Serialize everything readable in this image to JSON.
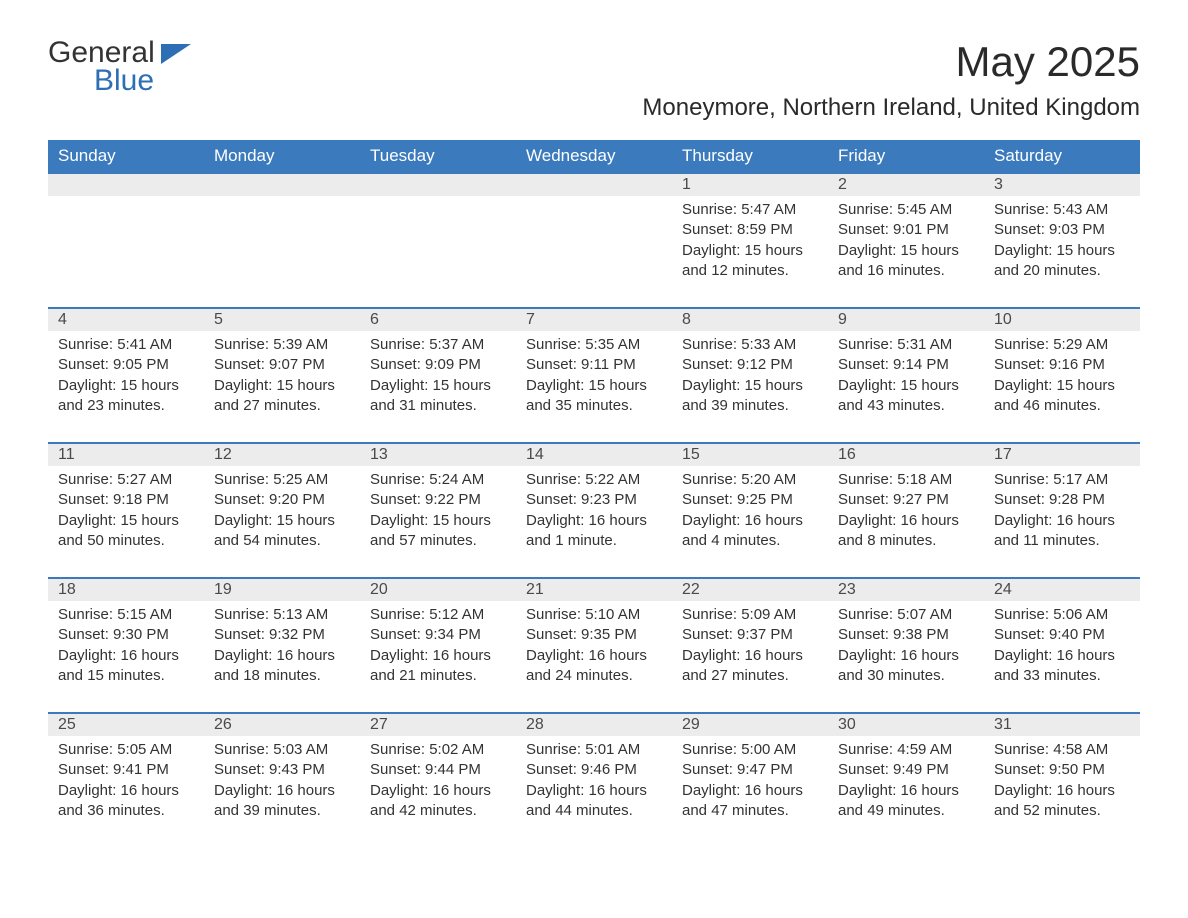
{
  "logo": {
    "line1": "General",
    "line2": "Blue"
  },
  "header": {
    "month_title": "May 2025",
    "location": "Moneymore, Northern Ireland, United Kingdom"
  },
  "colors": {
    "header_bg": "#3a7abd",
    "header_text": "#ffffff",
    "row_divider": "#3a7abd",
    "daynum_bg": "#ececec",
    "body_text": "#333333",
    "logo_accent": "#2c6fb4",
    "page_bg": "#ffffff"
  },
  "typography": {
    "month_title_fontsize": 42,
    "location_fontsize": 24,
    "weekday_fontsize": 17,
    "daynum_fontsize": 16,
    "body_fontsize": 15
  },
  "weekdays": [
    "Sunday",
    "Monday",
    "Tuesday",
    "Wednesday",
    "Thursday",
    "Friday",
    "Saturday"
  ],
  "grid": {
    "columns": 7,
    "rows": 5,
    "first_day_column_index": 4
  },
  "days": [
    {
      "n": 1,
      "sunrise": "5:47 AM",
      "sunset": "8:59 PM",
      "dl_h": 15,
      "dl_m": 12
    },
    {
      "n": 2,
      "sunrise": "5:45 AM",
      "sunset": "9:01 PM",
      "dl_h": 15,
      "dl_m": 16
    },
    {
      "n": 3,
      "sunrise": "5:43 AM",
      "sunset": "9:03 PM",
      "dl_h": 15,
      "dl_m": 20
    },
    {
      "n": 4,
      "sunrise": "5:41 AM",
      "sunset": "9:05 PM",
      "dl_h": 15,
      "dl_m": 23
    },
    {
      "n": 5,
      "sunrise": "5:39 AM",
      "sunset": "9:07 PM",
      "dl_h": 15,
      "dl_m": 27
    },
    {
      "n": 6,
      "sunrise": "5:37 AM",
      "sunset": "9:09 PM",
      "dl_h": 15,
      "dl_m": 31
    },
    {
      "n": 7,
      "sunrise": "5:35 AM",
      "sunset": "9:11 PM",
      "dl_h": 15,
      "dl_m": 35
    },
    {
      "n": 8,
      "sunrise": "5:33 AM",
      "sunset": "9:12 PM",
      "dl_h": 15,
      "dl_m": 39
    },
    {
      "n": 9,
      "sunrise": "5:31 AM",
      "sunset": "9:14 PM",
      "dl_h": 15,
      "dl_m": 43
    },
    {
      "n": 10,
      "sunrise": "5:29 AM",
      "sunset": "9:16 PM",
      "dl_h": 15,
      "dl_m": 46
    },
    {
      "n": 11,
      "sunrise": "5:27 AM",
      "sunset": "9:18 PM",
      "dl_h": 15,
      "dl_m": 50
    },
    {
      "n": 12,
      "sunrise": "5:25 AM",
      "sunset": "9:20 PM",
      "dl_h": 15,
      "dl_m": 54
    },
    {
      "n": 13,
      "sunrise": "5:24 AM",
      "sunset": "9:22 PM",
      "dl_h": 15,
      "dl_m": 57
    },
    {
      "n": 14,
      "sunrise": "5:22 AM",
      "sunset": "9:23 PM",
      "dl_h": 16,
      "dl_m": 1
    },
    {
      "n": 15,
      "sunrise": "5:20 AM",
      "sunset": "9:25 PM",
      "dl_h": 16,
      "dl_m": 4
    },
    {
      "n": 16,
      "sunrise": "5:18 AM",
      "sunset": "9:27 PM",
      "dl_h": 16,
      "dl_m": 8
    },
    {
      "n": 17,
      "sunrise": "5:17 AM",
      "sunset": "9:28 PM",
      "dl_h": 16,
      "dl_m": 11
    },
    {
      "n": 18,
      "sunrise": "5:15 AM",
      "sunset": "9:30 PM",
      "dl_h": 16,
      "dl_m": 15
    },
    {
      "n": 19,
      "sunrise": "5:13 AM",
      "sunset": "9:32 PM",
      "dl_h": 16,
      "dl_m": 18
    },
    {
      "n": 20,
      "sunrise": "5:12 AM",
      "sunset": "9:34 PM",
      "dl_h": 16,
      "dl_m": 21
    },
    {
      "n": 21,
      "sunrise": "5:10 AM",
      "sunset": "9:35 PM",
      "dl_h": 16,
      "dl_m": 24
    },
    {
      "n": 22,
      "sunrise": "5:09 AM",
      "sunset": "9:37 PM",
      "dl_h": 16,
      "dl_m": 27
    },
    {
      "n": 23,
      "sunrise": "5:07 AM",
      "sunset": "9:38 PM",
      "dl_h": 16,
      "dl_m": 30
    },
    {
      "n": 24,
      "sunrise": "5:06 AM",
      "sunset": "9:40 PM",
      "dl_h": 16,
      "dl_m": 33
    },
    {
      "n": 25,
      "sunrise": "5:05 AM",
      "sunset": "9:41 PM",
      "dl_h": 16,
      "dl_m": 36
    },
    {
      "n": 26,
      "sunrise": "5:03 AM",
      "sunset": "9:43 PM",
      "dl_h": 16,
      "dl_m": 39
    },
    {
      "n": 27,
      "sunrise": "5:02 AM",
      "sunset": "9:44 PM",
      "dl_h": 16,
      "dl_m": 42
    },
    {
      "n": 28,
      "sunrise": "5:01 AM",
      "sunset": "9:46 PM",
      "dl_h": 16,
      "dl_m": 44
    },
    {
      "n": 29,
      "sunrise": "5:00 AM",
      "sunset": "9:47 PM",
      "dl_h": 16,
      "dl_m": 47
    },
    {
      "n": 30,
      "sunrise": "4:59 AM",
      "sunset": "9:49 PM",
      "dl_h": 16,
      "dl_m": 49
    },
    {
      "n": 31,
      "sunrise": "4:58 AM",
      "sunset": "9:50 PM",
      "dl_h": 16,
      "dl_m": 52
    }
  ],
  "labels": {
    "sunrise": "Sunrise",
    "sunset": "Sunset",
    "daylight": "Daylight",
    "hours": "hours",
    "and": "and",
    "minute_singular": "minute",
    "minute_plural": "minutes"
  }
}
